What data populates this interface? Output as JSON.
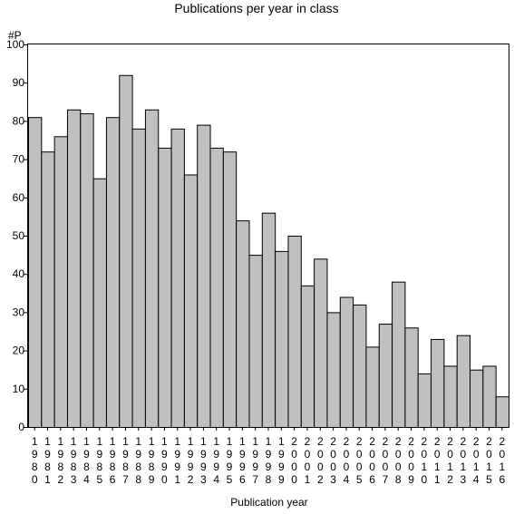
{
  "chart_data": {
    "type": "bar",
    "title": "Publications per year in class",
    "ylabel": "#P",
    "xlabel": "Publication year",
    "ylim": [
      0,
      100
    ],
    "yticks": [
      0,
      10,
      20,
      30,
      40,
      50,
      60,
      70,
      80,
      90,
      100
    ],
    "grid": false,
    "bar_color": "#c0c0c0",
    "categories": [
      "1980",
      "1981",
      "1982",
      "1983",
      "1984",
      "1985",
      "1986",
      "1987",
      "1988",
      "1989",
      "1990",
      "1991",
      "1992",
      "1993",
      "1994",
      "1995",
      "1996",
      "1997",
      "1998",
      "1999",
      "2000",
      "2001",
      "2002",
      "2003",
      "2004",
      "2005",
      "2006",
      "2007",
      "2008",
      "2009",
      "2010",
      "2011",
      "2012",
      "2013",
      "2014",
      "2015",
      "2016"
    ],
    "values": [
      81,
      72,
      76,
      83,
      82,
      65,
      81,
      92,
      78,
      83,
      73,
      78,
      66,
      79,
      73,
      72,
      54,
      45,
      56,
      46,
      50,
      37,
      44,
      30,
      34,
      32,
      21,
      27,
      38,
      26,
      14,
      23,
      16,
      24,
      15,
      16,
      8
    ]
  }
}
